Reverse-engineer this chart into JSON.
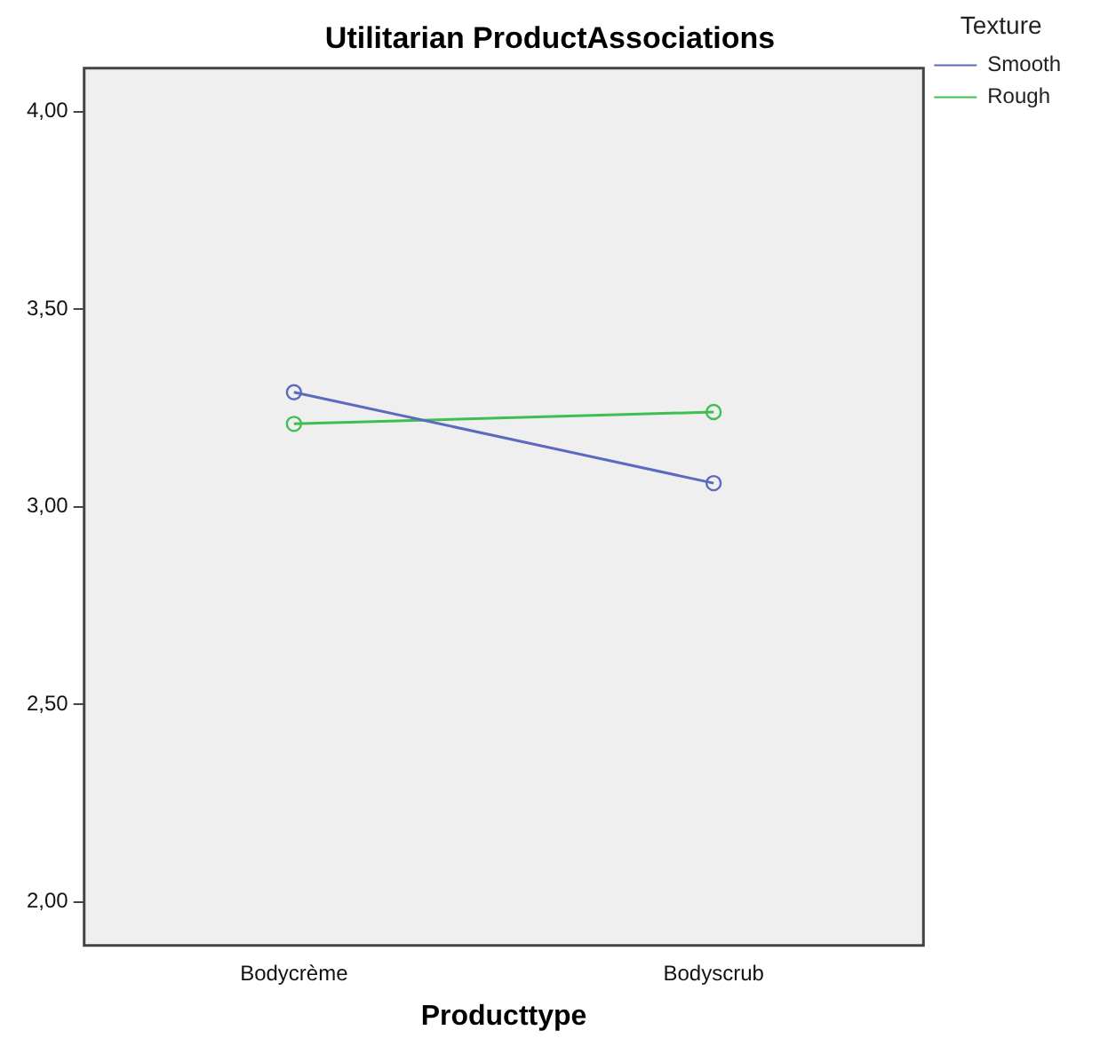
{
  "chart_data": {
    "type": "line",
    "title": "Utilitarian ProductAssociations",
    "xlabel": "Producttype",
    "legend_title": "Texture",
    "categories": [
      "Bodycrème",
      "Bodyscrub"
    ],
    "series": [
      {
        "name": "Smooth",
        "color": "#5b6abf",
        "values": [
          3.29,
          3.06
        ]
      },
      {
        "name": "Rough",
        "color": "#3fbf4f",
        "values": [
          3.21,
          3.24
        ]
      }
    ],
    "ylim": [
      1.89,
      4.11
    ],
    "yticks": [
      {
        "value": 2,
        "label": "2,00"
      },
      {
        "value": 2.5,
        "label": "2,50"
      },
      {
        "value": 3,
        "label": "3,00"
      },
      {
        "value": 3.5,
        "label": "3,50"
      },
      {
        "value": 4,
        "label": "4,00"
      }
    ],
    "grid": false,
    "legend": "top right",
    "marker": "circle",
    "line_style": "solid"
  }
}
